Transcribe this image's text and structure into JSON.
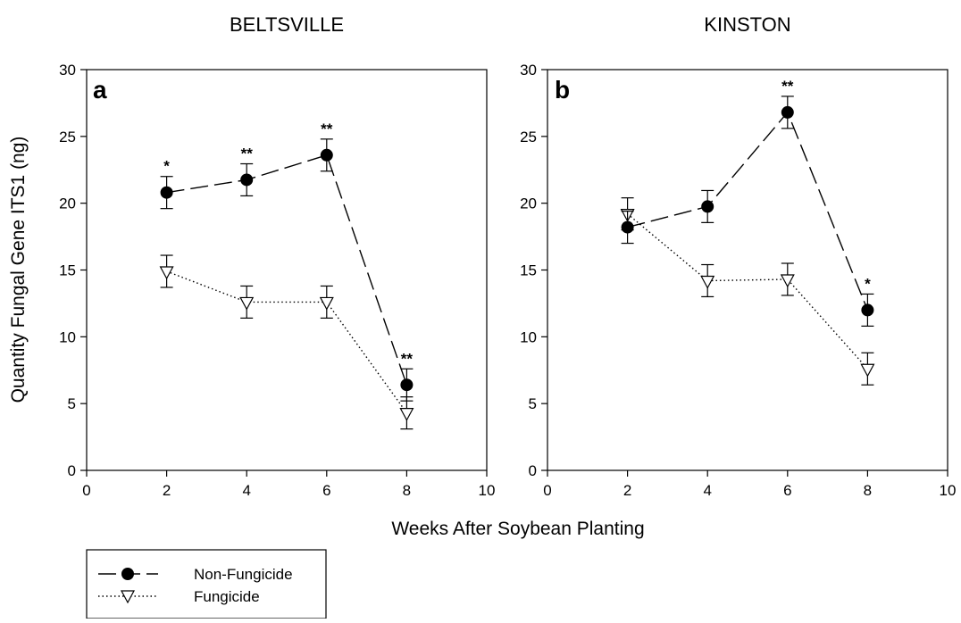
{
  "shared": {
    "ylabel": "Quantity Fungal Gene ITS1 (ng)",
    "xlabel": "Weeks After Soybean Planting"
  },
  "legend": {
    "placement": "bottom-left",
    "items": [
      {
        "label": "Non-Fungicide",
        "marker": "filled-circle",
        "line": "long-dash"
      },
      {
        "label": "Fungicide",
        "marker": "open-down-triangle",
        "line": "dotted"
      }
    ]
  },
  "chart_data": [
    {
      "type": "line",
      "title": "BELTSVILLE",
      "panel_label": "a",
      "x_ticks": [
        "0",
        "2",
        "4",
        "6",
        "8",
        "10"
      ],
      "y_ticks": [
        "0",
        "5",
        "10",
        "15",
        "20",
        "25",
        "30"
      ],
      "xlim": [
        0,
        10
      ],
      "ylim": [
        0,
        30
      ],
      "grid": false,
      "x": [
        2,
        4,
        6,
        8
      ],
      "series": [
        {
          "name": "Non-Fungicide",
          "values": [
            20.8,
            21.75,
            23.6,
            6.4
          ],
          "errors": [
            1.2,
            1.2,
            1.2,
            1.2
          ]
        },
        {
          "name": "Fungicide",
          "values": [
            14.9,
            12.6,
            12.6,
            4.3
          ],
          "errors": [
            1.2,
            1.2,
            1.2,
            1.2
          ]
        }
      ],
      "significance": [
        {
          "x": 2,
          "label": "*"
        },
        {
          "x": 4,
          "label": "**"
        },
        {
          "x": 6,
          "label": "**"
        },
        {
          "x": 8,
          "label": "**"
        }
      ]
    },
    {
      "type": "line",
      "title": "KINSTON",
      "panel_label": "b",
      "x_ticks": [
        "0",
        "2",
        "4",
        "6",
        "8",
        "10"
      ],
      "y_ticks": [
        "0",
        "5",
        "10",
        "15",
        "20",
        "25",
        "30"
      ],
      "xlim": [
        0,
        10
      ],
      "ylim": [
        0,
        30
      ],
      "grid": false,
      "x": [
        2,
        4,
        6,
        8
      ],
      "series": [
        {
          "name": "Non-Fungicide",
          "values": [
            18.2,
            19.75,
            26.8,
            12.0
          ],
          "errors": [
            1.2,
            1.2,
            1.2,
            1.2
          ]
        },
        {
          "name": "Fungicide",
          "values": [
            19.2,
            14.2,
            14.3,
            7.6
          ],
          "errors": [
            1.2,
            1.2,
            1.2,
            1.2
          ]
        }
      ],
      "significance": [
        {
          "x": 6,
          "label": "**"
        },
        {
          "x": 8,
          "label": "*"
        }
      ]
    }
  ]
}
